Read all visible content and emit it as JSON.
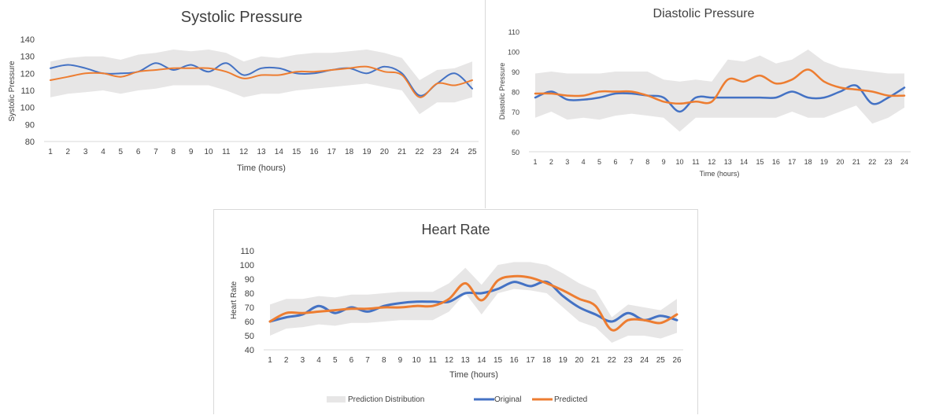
{
  "colors": {
    "band": "#e7e6e6",
    "original": "#4472c4",
    "predicted": "#ed7d31",
    "text": "#404040"
  },
  "chart_data": [
    {
      "type": "line",
      "title": "Systolic Pressure",
      "xlabel": "Time (hours)",
      "ylabel": "Systolic Pressure",
      "ylim": [
        80,
        140
      ],
      "yticks": [
        80,
        90,
        100,
        110,
        120,
        130,
        140
      ],
      "x": [
        1,
        2,
        3,
        4,
        5,
        6,
        7,
        8,
        9,
        10,
        11,
        12,
        13,
        14,
        15,
        16,
        17,
        18,
        19,
        20,
        21,
        22,
        23,
        24,
        25
      ],
      "band": {
        "lower": [
          106,
          108,
          109,
          110,
          108,
          110,
          111,
          113,
          113,
          113,
          110,
          106,
          108,
          108,
          110,
          111,
          112,
          113,
          114,
          112,
          110,
          96,
          103,
          103,
          106
        ],
        "upper": [
          127,
          129,
          130,
          130,
          128,
          131,
          132,
          134,
          133,
          134,
          132,
          127,
          130,
          129,
          131,
          132,
          132,
          133,
          134,
          132,
          129,
          116,
          122,
          123,
          127
        ]
      },
      "series": [
        {
          "name": "Original",
          "values": [
            123,
            125,
            123,
            120,
            120,
            121,
            126,
            122,
            125,
            121,
            126,
            119,
            123,
            123,
            120,
            120,
            122,
            123,
            120,
            124,
            120,
            107,
            114,
            120,
            111
          ]
        },
        {
          "name": "Predicted",
          "values": [
            116,
            118,
            120,
            120,
            118,
            121,
            122,
            123,
            123,
            123,
            121,
            117,
            119,
            119,
            121,
            121,
            122,
            123,
            124,
            121,
            119,
            106,
            114,
            113,
            116
          ]
        }
      ]
    },
    {
      "type": "line",
      "title": "Diastolic Pressure",
      "xlabel": "Time (hours)",
      "ylabel": "Diastolic Pressure",
      "ylim": [
        50,
        110
      ],
      "yticks": [
        50,
        60,
        70,
        80,
        90,
        100,
        110
      ],
      "x": [
        1,
        2,
        3,
        4,
        5,
        6,
        7,
        8,
        9,
        10,
        11,
        12,
        13,
        14,
        15,
        16,
        17,
        18,
        19,
        20,
        21,
        22,
        23,
        24
      ],
      "band": {
        "lower": [
          67,
          70,
          66,
          67,
          66,
          68,
          69,
          68,
          67,
          60,
          67,
          67,
          67,
          67,
          67,
          67,
          70,
          67,
          67,
          70,
          73,
          64,
          67,
          72
        ],
        "upper": [
          89,
          90,
          89,
          89,
          89,
          90,
          90,
          90,
          86,
          85,
          86,
          85,
          96,
          95,
          98,
          94,
          96,
          101,
          95,
          92,
          91,
          90,
          89,
          89
        ]
      },
      "series": [
        {
          "name": "Original",
          "values": [
            77,
            80,
            76,
            76,
            77,
            79,
            79,
            78,
            77,
            70,
            77,
            77,
            77,
            77,
            77,
            77,
            80,
            77,
            77,
            80,
            83,
            74,
            77,
            82
          ]
        },
        {
          "name": "Predicted",
          "values": [
            79,
            79,
            78,
            78,
            80,
            80,
            80,
            78,
            75,
            74,
            75,
            75,
            86,
            85,
            88,
            84,
            86,
            91,
            85,
            82,
            81,
            80,
            78,
            78
          ]
        }
      ]
    },
    {
      "type": "line",
      "title": "Heart Rate",
      "xlabel": "Time (hours)",
      "ylabel": "Heart Rate",
      "ylim": [
        40,
        110
      ],
      "yticks": [
        40,
        50,
        60,
        70,
        80,
        90,
        100,
        110
      ],
      "x": [
        1,
        2,
        3,
        4,
        5,
        6,
        7,
        8,
        9,
        10,
        11,
        12,
        13,
        14,
        15,
        16,
        17,
        18,
        19,
        20,
        21,
        22,
        23,
        24,
        25,
        26
      ],
      "band": {
        "lower": [
          50,
          55,
          56,
          58,
          57,
          59,
          59,
          60,
          61,
          61,
          61,
          67,
          80,
          65,
          80,
          83,
          82,
          80,
          70,
          60,
          56,
          45,
          50,
          50,
          48,
          52
        ],
        "upper": [
          72,
          76,
          76,
          78,
          77,
          79,
          79,
          80,
          81,
          81,
          81,
          87,
          98,
          86,
          100,
          102,
          102,
          100,
          94,
          87,
          82,
          63,
          72,
          70,
          68,
          76
        ]
      },
      "series": [
        {
          "name": "Original",
          "values": [
            60,
            63,
            65,
            71,
            66,
            70,
            67,
            71,
            73,
            74,
            74,
            74,
            80,
            80,
            83,
            88,
            85,
            88,
            78,
            70,
            65,
            60,
            66,
            61,
            64,
            61
          ]
        },
        {
          "name": "Predicted",
          "values": [
            60,
            66,
            66,
            67,
            68,
            69,
            69,
            70,
            70,
            71,
            71,
            76,
            87,
            75,
            89,
            92,
            91,
            87,
            82,
            76,
            71,
            54,
            61,
            61,
            59,
            65
          ]
        }
      ]
    }
  ],
  "legend": {
    "band_label": "Prediction Distribution",
    "original_label": "Original",
    "predicted_label": "Predicted"
  }
}
